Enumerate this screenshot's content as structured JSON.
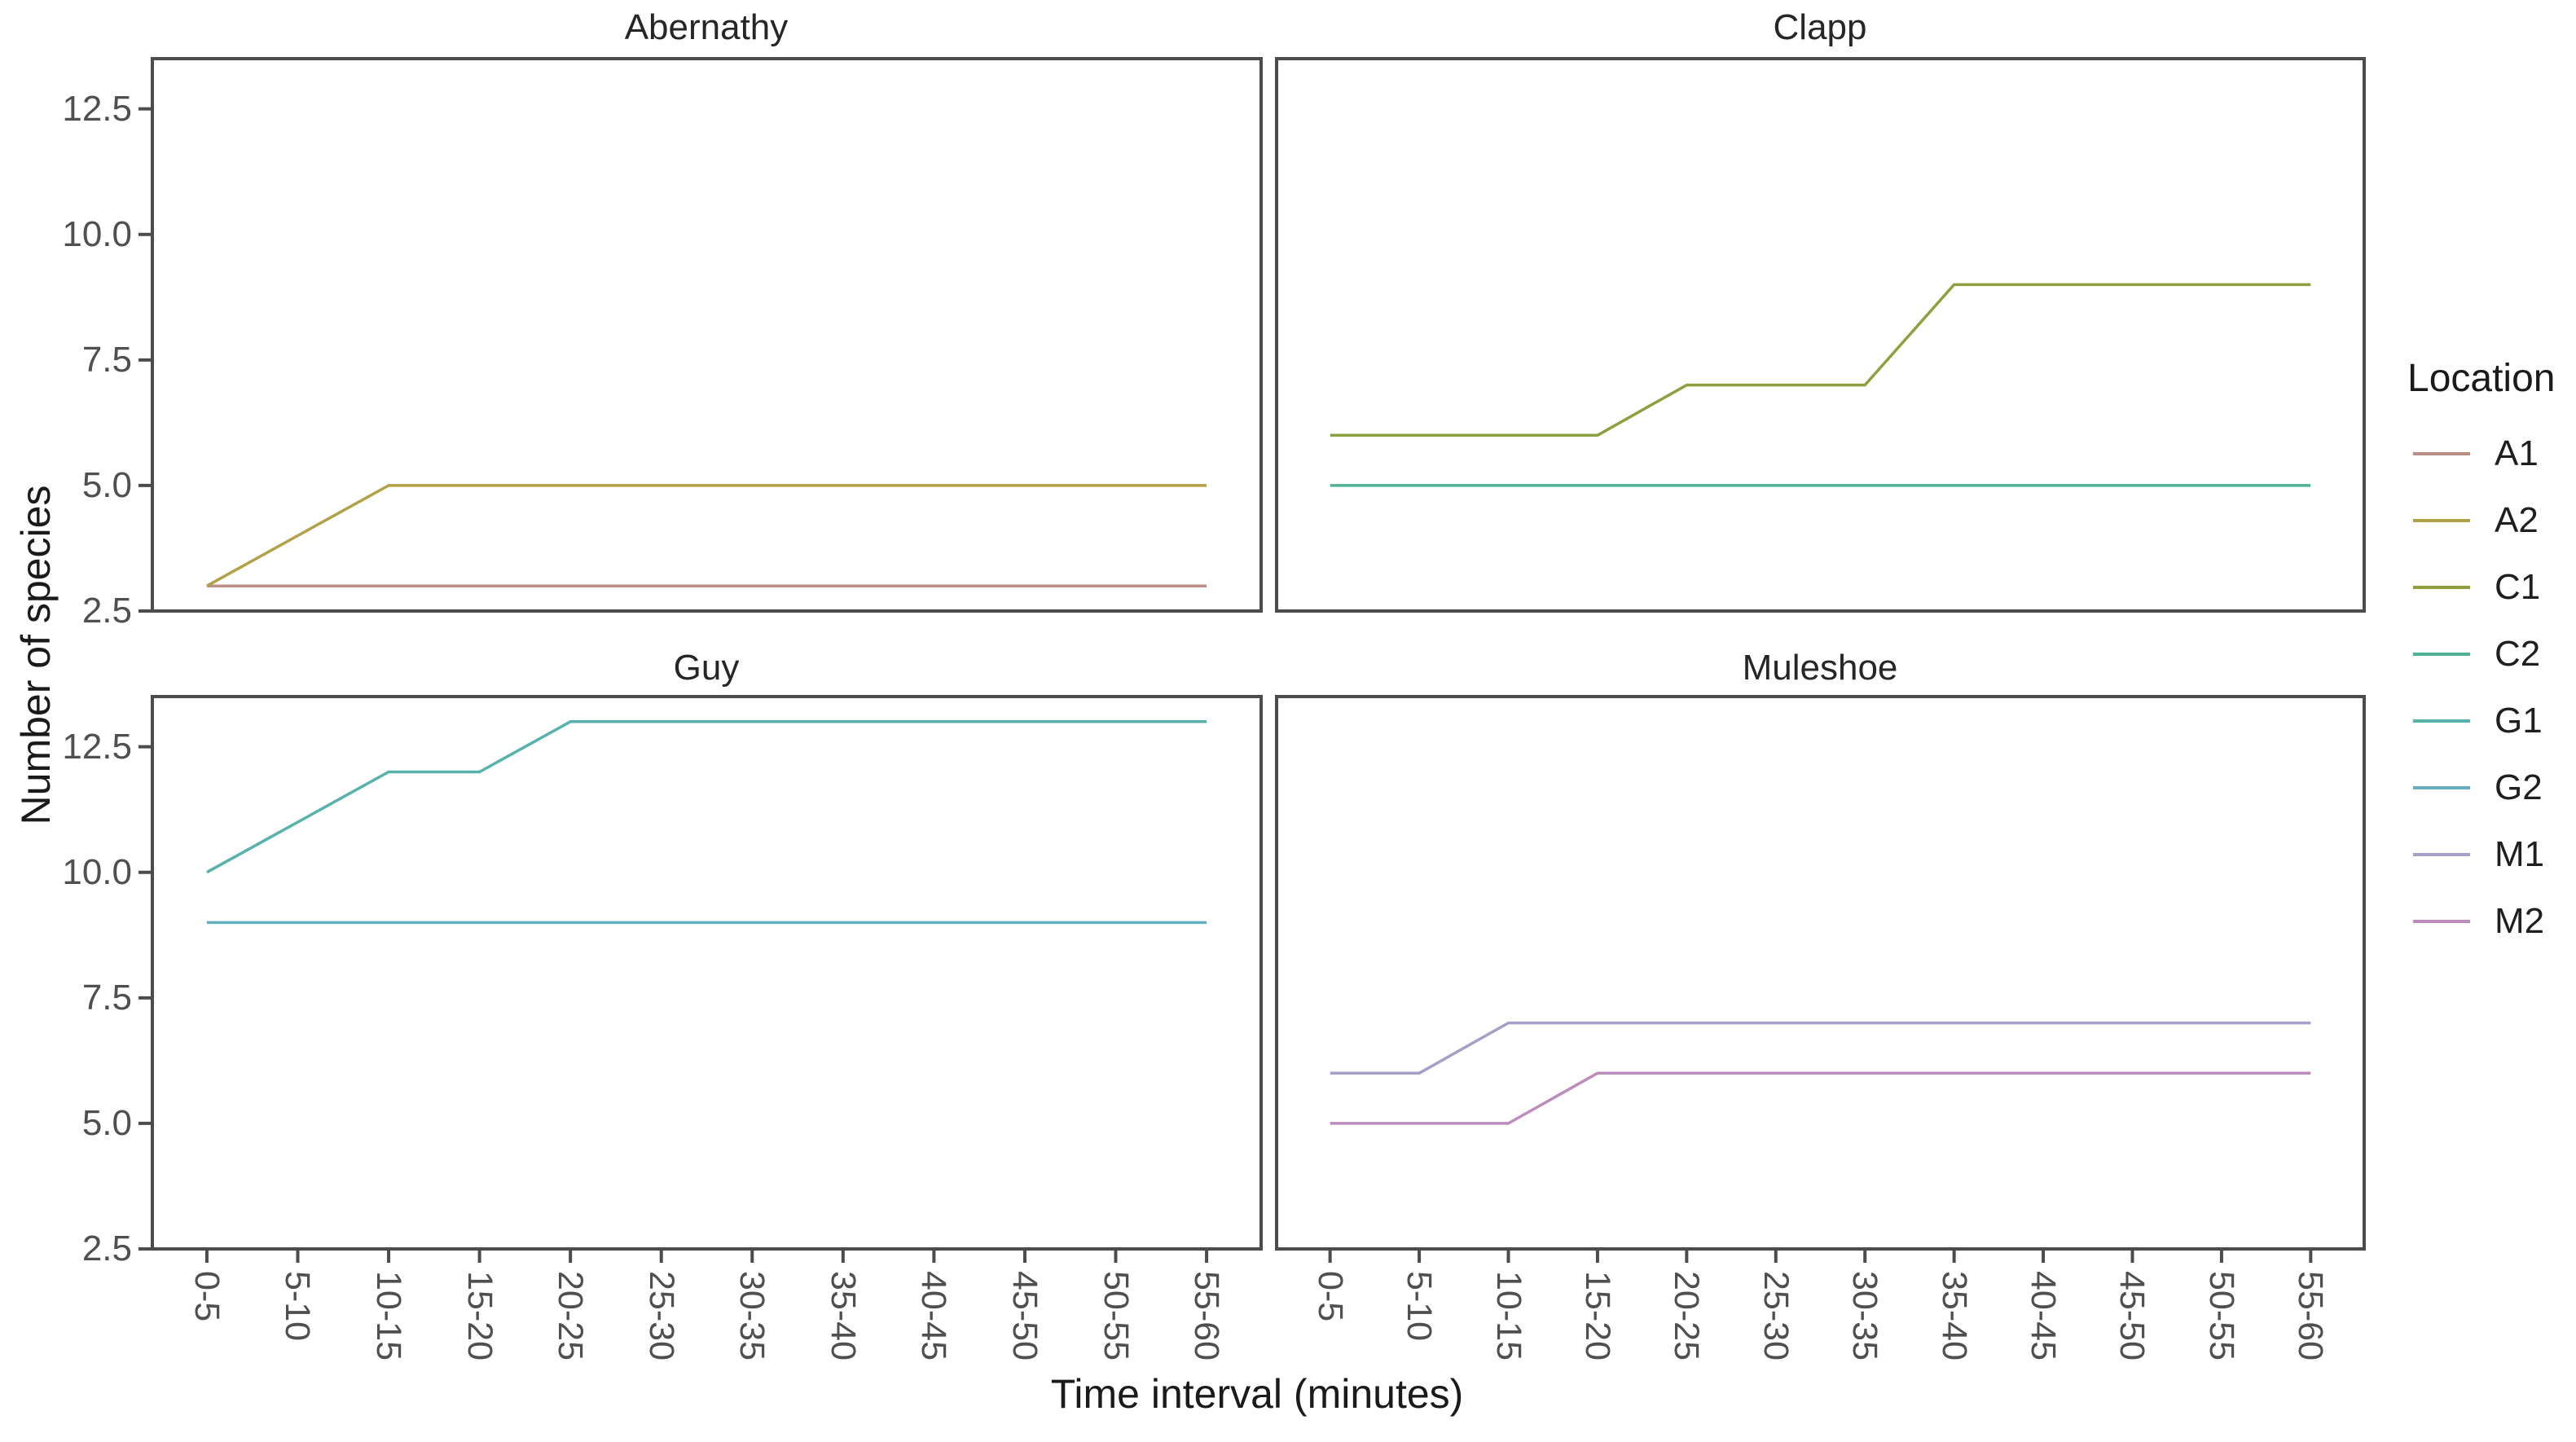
{
  "chart_data": {
    "type": "line",
    "title": "",
    "xlabel": "Time interval (minutes)",
    "ylabel": "Number of species",
    "categories": [
      "0-5",
      "5-10",
      "10-15",
      "15-20",
      "20-25",
      "25-30",
      "30-35",
      "35-40",
      "40-45",
      "45-50",
      "50-55",
      "55-60"
    ],
    "ytick_labels": [
      "12.5",
      "10.0",
      "7.5",
      "5.0",
      "2.5"
    ],
    "ytick_values": [
      12.5,
      10.0,
      7.5,
      5.0,
      2.5
    ],
    "ylim": [
      2.5,
      13.5
    ],
    "grid": false,
    "panel_border_color": "#4c4c4c",
    "legend": {
      "title": "Location",
      "position": "right",
      "entries": [
        {
          "label": "A1",
          "color": "#bc8e86"
        },
        {
          "label": "A2",
          "color": "#b1a147"
        },
        {
          "label": "C1",
          "color": "#8da03e"
        },
        {
          "label": "C2",
          "color": "#50b194"
        },
        {
          "label": "G1",
          "color": "#57b2ab"
        },
        {
          "label": "G2",
          "color": "#66afc1"
        },
        {
          "label": "M1",
          "color": "#a89fc9"
        },
        {
          "label": "M2",
          "color": "#bd8cbc"
        }
      ]
    },
    "facets": [
      {
        "title": "Abernathy",
        "series": [
          {
            "name": "A1",
            "color": "#bc8e86",
            "values": [
              3,
              3,
              3,
              3,
              3,
              3,
              3,
              3,
              3,
              3,
              3,
              3
            ]
          },
          {
            "name": "A2",
            "color": "#b1a147",
            "values": [
              3,
              4,
              5,
              5,
              5,
              5,
              5,
              5,
              5,
              5,
              5,
              5
            ]
          }
        ]
      },
      {
        "title": "Clapp",
        "series": [
          {
            "name": "C1",
            "color": "#8da03e",
            "values": [
              6,
              6,
              6,
              6,
              7,
              7,
              7,
              9,
              9,
              9,
              9,
              9
            ]
          },
          {
            "name": "C2",
            "color": "#50b194",
            "values": [
              5,
              5,
              5,
              5,
              5,
              5,
              5,
              5,
              5,
              5,
              5,
              5
            ]
          }
        ]
      },
      {
        "title": "Guy",
        "series": [
          {
            "name": "G1",
            "color": "#57b2ab",
            "values": [
              10,
              11,
              12,
              12,
              13,
              13,
              13,
              13,
              13,
              13,
              13,
              13
            ]
          },
          {
            "name": "G2",
            "color": "#66afc1",
            "values": [
              9,
              9,
              9,
              9,
              9,
              9,
              9,
              9,
              9,
              9,
              9,
              9
            ]
          }
        ]
      },
      {
        "title": "Muleshoe",
        "series": [
          {
            "name": "M1",
            "color": "#a89fc9",
            "values": [
              6,
              6,
              7,
              7,
              7,
              7,
              7,
              7,
              7,
              7,
              7,
              7
            ]
          },
          {
            "name": "M2",
            "color": "#bd8cbc",
            "values": [
              5,
              5,
              5,
              6,
              6,
              6,
              6,
              6,
              6,
              6,
              6,
              6
            ]
          }
        ]
      }
    ]
  }
}
